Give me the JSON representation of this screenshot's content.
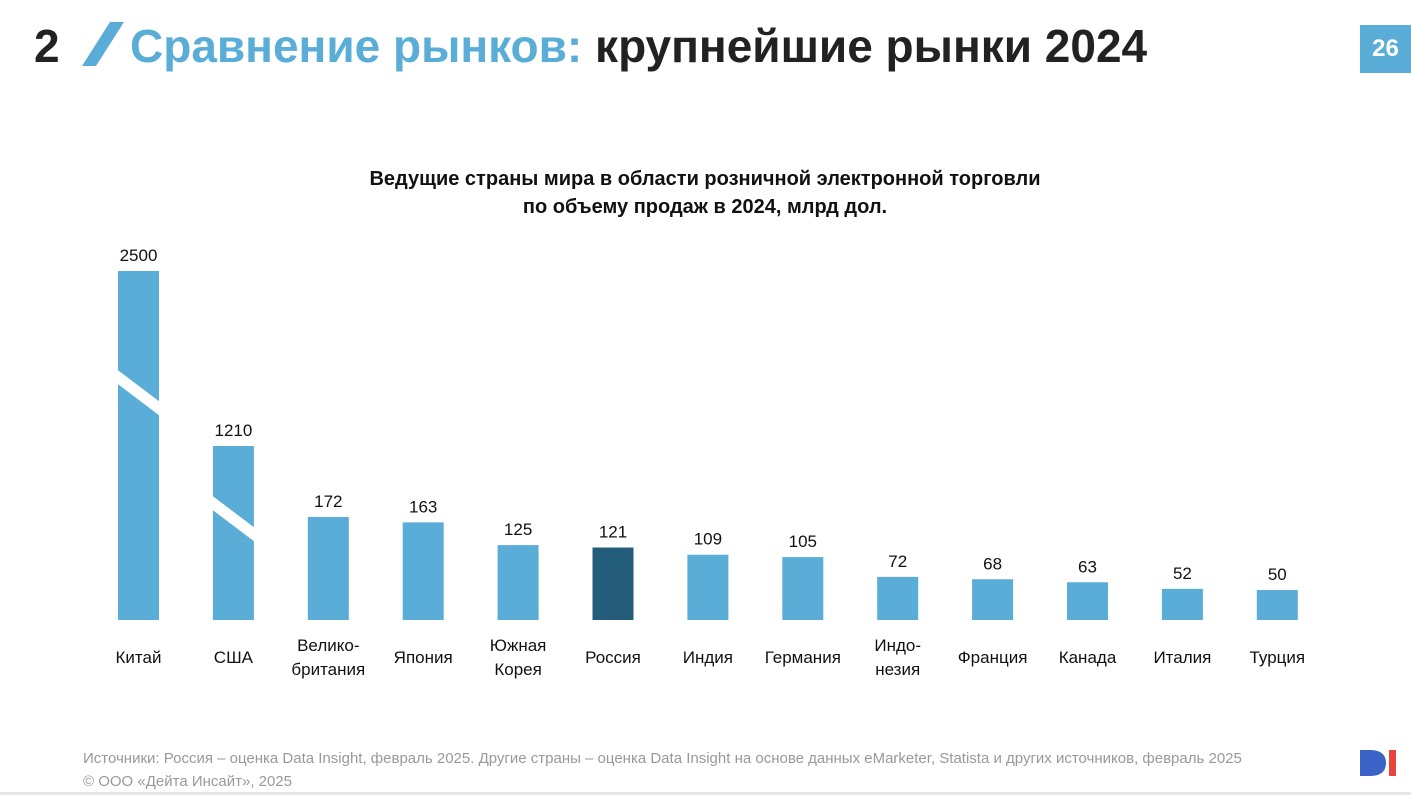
{
  "header": {
    "section_number": "2",
    "title_accent": "Сравнение рынков:",
    "title_rest": "крупнейшие рынки 2024",
    "page_number": "26"
  },
  "chart_data": {
    "type": "bar",
    "title_lines": [
      "Ведущие страны мира в области розничной электронной торговли",
      "по объему продаж в 2024, млрд дол."
    ],
    "categories": [
      [
        "Китай"
      ],
      [
        "США"
      ],
      [
        "Велико-",
        "британия"
      ],
      [
        "Япония"
      ],
      [
        "Южная",
        "Корея"
      ],
      [
        "Россия"
      ],
      [
        "Индия"
      ],
      [
        "Германия"
      ],
      [
        "Индо-",
        "незия"
      ],
      [
        "Франция"
      ],
      [
        "Канада"
      ],
      [
        "Италия"
      ],
      [
        "Турция"
      ]
    ],
    "values": [
      2500,
      1210,
      172,
      163,
      125,
      121,
      109,
      105,
      72,
      68,
      63,
      52,
      50
    ],
    "value_labels": [
      "2500",
      "1210",
      "172",
      "163",
      "125",
      "121",
      "109",
      "105",
      "72",
      "68",
      "63",
      "52",
      "50"
    ],
    "axis_breaks": [
      "Китай",
      "США"
    ],
    "highlight": "Россия",
    "colors": {
      "bar": "#5aadd6",
      "highlight": "#235d7a"
    },
    "xlabel": "",
    "ylabel": "",
    "grid": false,
    "legend": "none"
  },
  "footer": {
    "source": "Источники: Россия – оценка Data Insight, февраль 2025. Другие страны – оценка Data Insight на основе данных eMarketer, Statista и других источников, февраль 2025",
    "copyright": "© ООО «Дейта Инсайт», 2025",
    "logo_text": "DI"
  }
}
